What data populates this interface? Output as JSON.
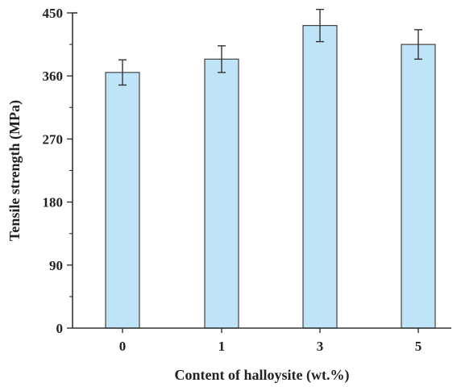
{
  "chart_data": {
    "type": "bar",
    "title": "",
    "xlabel": "Content of halloysite (wt.%)",
    "ylabel": "Tensile strength (MPa)",
    "categories": [
      "0",
      "1",
      "3",
      "5"
    ],
    "values": [
      365,
      384,
      432,
      405
    ],
    "error": [
      18,
      19,
      23,
      21
    ],
    "ylim": [
      0,
      450
    ],
    "yticks": [
      0,
      90,
      180,
      270,
      360,
      450
    ],
    "ytick_labels": [
      "0",
      "90",
      "180",
      "270",
      "360",
      "450"
    ],
    "grid": false,
    "legend": "none",
    "colors": {
      "bar_fill": "#bfe3f7",
      "bar_stroke": "#444444",
      "axis": "#333333"
    }
  }
}
